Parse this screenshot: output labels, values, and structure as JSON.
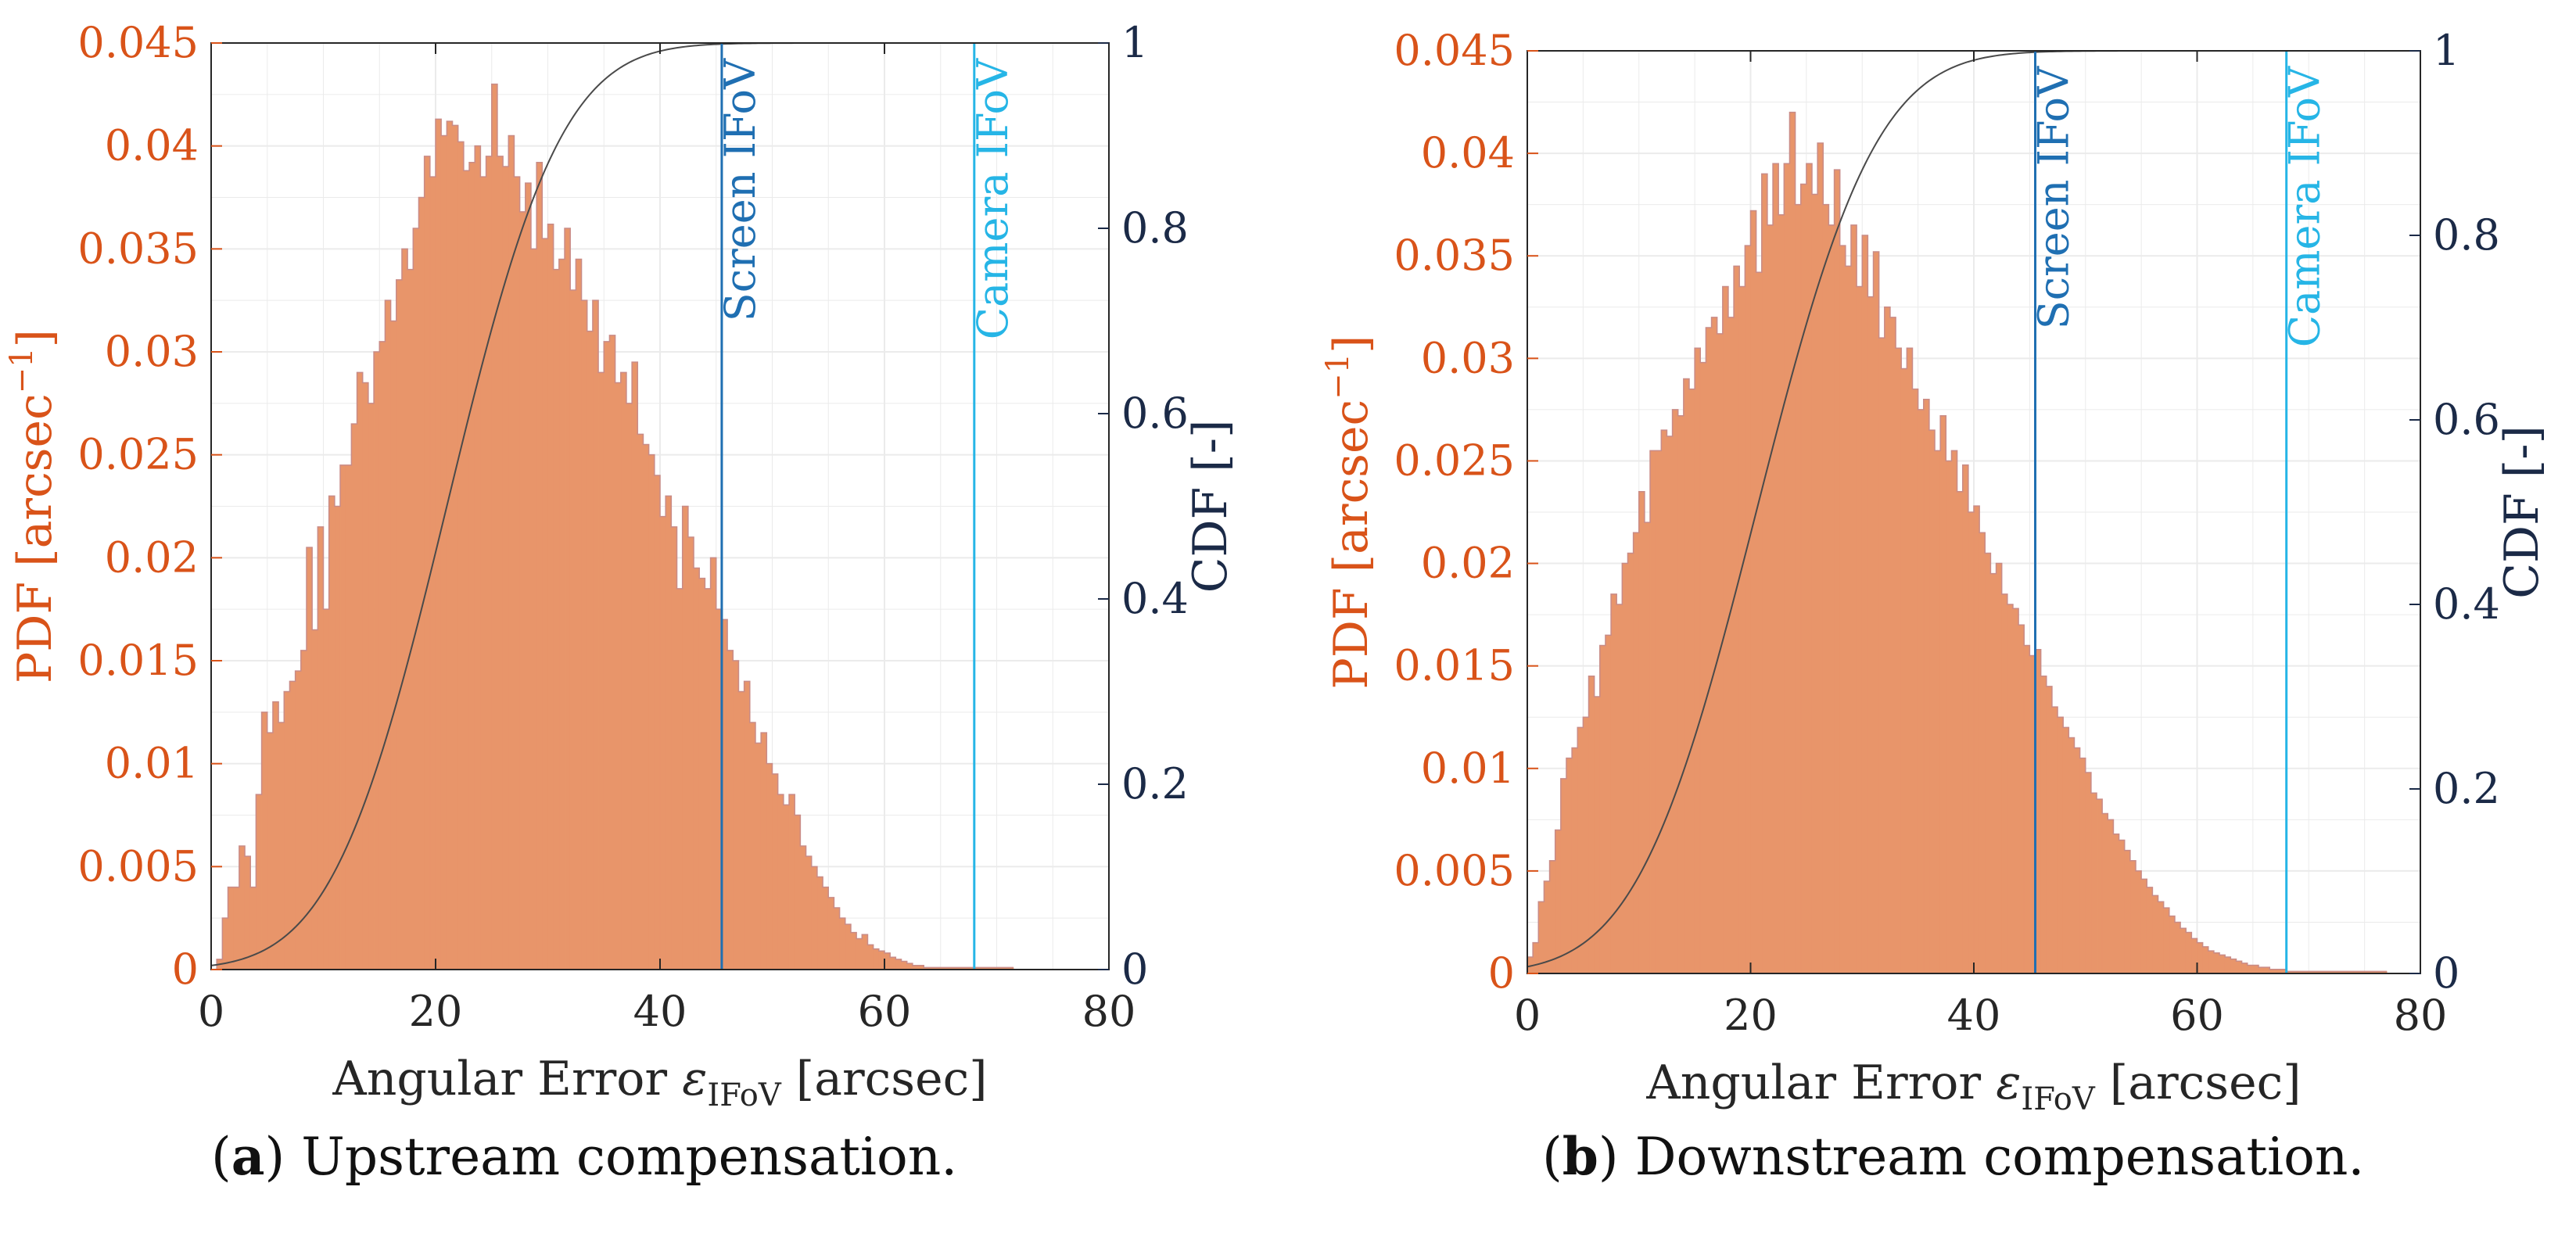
{
  "colors": {
    "histogram": "#e8956a",
    "histogram_edge": "#c98b86",
    "pdf_axis": "#d95319",
    "cdf_axis": "#1b2a47",
    "cdf_curve": "#4a4a4a",
    "screen_ifov": "#1f6fb2",
    "camera_ifov": "#26b5e6",
    "grid": "#ebebeb"
  },
  "chart_data": [
    {
      "type": "bar",
      "panel": "a",
      "caption_tag": "a",
      "caption_text": "Upstream compensation.",
      "xlabel_prefix": "Angular Error",
      "xlabel_symbol": "ε",
      "xlabel_subscript": "IFoV",
      "xlabel_suffix": "[arcsec]",
      "ylabel_left_main": "PDF [arcsec",
      "ylabel_left_sup": "−1",
      "ylabel_left_end": "]",
      "ylabel_right": "CDF [-]",
      "xlim": [
        0,
        80
      ],
      "ylim_left": [
        0,
        0.045
      ],
      "ylim_right": [
        0,
        1
      ],
      "xticks": [
        0,
        20,
        40,
        60,
        80
      ],
      "yticks_left": [
        "0",
        "0.005",
        "0.01",
        "0.015",
        "0.02",
        "0.025",
        "0.03",
        "0.035",
        "0.04",
        "0.045"
      ],
      "yticks_right": [
        "0",
        "0.2",
        "0.4",
        "0.6",
        "0.8",
        "1"
      ],
      "grid": "on",
      "bin_width": 0.5,
      "bin_start": 0.5,
      "pdf_values": [
        0.0005,
        0.0025,
        0.004,
        0.004,
        0.006,
        0.0055,
        0.004,
        0.0085,
        0.0125,
        0.0115,
        0.013,
        0.012,
        0.0135,
        0.014,
        0.0145,
        0.0155,
        0.0205,
        0.0165,
        0.0215,
        0.0175,
        0.023,
        0.0225,
        0.0245,
        0.0245,
        0.0265,
        0.029,
        0.0285,
        0.0275,
        0.03,
        0.0305,
        0.0325,
        0.0315,
        0.0335,
        0.035,
        0.034,
        0.036,
        0.0375,
        0.0395,
        0.0385,
        0.0413,
        0.0405,
        0.0412,
        0.041,
        0.0402,
        0.0388,
        0.0392,
        0.04,
        0.0385,
        0.0395,
        0.043,
        0.0395,
        0.039,
        0.0405,
        0.0385,
        0.0368,
        0.0382,
        0.035,
        0.0392,
        0.0355,
        0.0362,
        0.034,
        0.0345,
        0.036,
        0.033,
        0.0345,
        0.0325,
        0.031,
        0.0325,
        0.029,
        0.0305,
        0.0308,
        0.0285,
        0.029,
        0.0275,
        0.0295,
        0.026,
        0.0255,
        0.025,
        0.024,
        0.022,
        0.023,
        0.0215,
        0.0185,
        0.0225,
        0.021,
        0.0195,
        0.019,
        0.0185,
        0.02,
        0.0175,
        0.017,
        0.0155,
        0.015,
        0.0135,
        0.014,
        0.012,
        0.011,
        0.0115,
        0.01,
        0.0095,
        0.0085,
        0.008,
        0.0085,
        0.0075,
        0.006,
        0.0055,
        0.005,
        0.0045,
        0.004,
        0.0035,
        0.003,
        0.0025,
        0.0022,
        0.0018,
        0.0015,
        0.0017,
        0.0012,
        0.001,
        0.0009,
        0.0008,
        0.0006,
        0.0005,
        0.0004,
        0.0003,
        0.0002,
        0.0002,
        0.0001,
        0.0001,
        0.0001,
        0.0001,
        0.0001,
        0.0001,
        0.0001,
        0.0001,
        0.0001,
        0.0001,
        0.0001,
        0.0001,
        0.0001,
        0.0001,
        0.0001,
        0.0001
      ],
      "cdf_mean": 21.0,
      "cdf_sd": 8.0,
      "vlines": [
        {
          "label": "Screen IFoV",
          "x": 45.5,
          "color_key": "screen_ifov"
        },
        {
          "label": "Camera IFoV",
          "x": 68.0,
          "color_key": "camera_ifov"
        }
      ]
    },
    {
      "type": "bar",
      "panel": "b",
      "caption_tag": "b",
      "caption_text": "Downstream compensation.",
      "xlabel_prefix": "Angular Error",
      "xlabel_symbol": "ε",
      "xlabel_subscript": "IFoV",
      "xlabel_suffix": "[arcsec]",
      "ylabel_left_main": "PDF [arcsec",
      "ylabel_left_sup": "−1",
      "ylabel_left_end": "]",
      "ylabel_right": "CDF [-]",
      "xlim": [
        0,
        80
      ],
      "ylim_left": [
        0,
        0.045
      ],
      "ylim_right": [
        0,
        1
      ],
      "xticks": [
        0,
        20,
        40,
        60,
        80
      ],
      "yticks_left": [
        "0",
        "0.005",
        "0.01",
        "0.015",
        "0.02",
        "0.025",
        "0.03",
        "0.035",
        "0.04",
        "0.045"
      ],
      "yticks_right": [
        "0",
        "0.2",
        "0.4",
        "0.6",
        "0.8",
        "1"
      ],
      "grid": "on",
      "bin_width": 0.5,
      "bin_start": 0.0,
      "pdf_values": [
        0.0008,
        0.0015,
        0.0035,
        0.0045,
        0.0055,
        0.007,
        0.0095,
        0.0105,
        0.011,
        0.012,
        0.0125,
        0.0145,
        0.0135,
        0.016,
        0.0165,
        0.0185,
        0.018,
        0.02,
        0.0205,
        0.0215,
        0.0235,
        0.022,
        0.0255,
        0.0255,
        0.0265,
        0.0262,
        0.0275,
        0.0272,
        0.029,
        0.0285,
        0.0305,
        0.0298,
        0.0315,
        0.032,
        0.0312,
        0.0335,
        0.032,
        0.0345,
        0.0335,
        0.0355,
        0.0372,
        0.0342,
        0.039,
        0.0365,
        0.0395,
        0.037,
        0.0395,
        0.042,
        0.0375,
        0.0385,
        0.0395,
        0.038,
        0.0405,
        0.0375,
        0.0365,
        0.0392,
        0.0355,
        0.0345,
        0.0365,
        0.0335,
        0.036,
        0.033,
        0.0352,
        0.031,
        0.0325,
        0.032,
        0.0305,
        0.0295,
        0.0305,
        0.0285,
        0.0275,
        0.028,
        0.0265,
        0.0255,
        0.0272,
        0.025,
        0.0255,
        0.0235,
        0.0248,
        0.0225,
        0.0228,
        0.0215,
        0.0205,
        0.0195,
        0.02,
        0.0185,
        0.018,
        0.0178,
        0.017,
        0.016,
        0.0155,
        0.0158,
        0.0145,
        0.014,
        0.013,
        0.0125,
        0.012,
        0.0115,
        0.011,
        0.0105,
        0.0098,
        0.0088,
        0.0085,
        0.0078,
        0.0075,
        0.0068,
        0.0065,
        0.006,
        0.0055,
        0.005,
        0.0046,
        0.0042,
        0.0038,
        0.0035,
        0.0032,
        0.0028,
        0.0025,
        0.0022,
        0.002,
        0.0017,
        0.0015,
        0.0013,
        0.0011,
        0.001,
        0.0009,
        0.0008,
        0.0007,
        0.0006,
        0.0005,
        0.0004,
        0.0004,
        0.0003,
        0.0003,
        0.0002,
        0.0002,
        0.0002,
        0.0001,
        0.0001,
        0.0001,
        0.0001,
        0.0001,
        0.0001,
        0.0001,
        0.0001,
        0.0001,
        0.0001,
        0.0001,
        0.0001,
        0.0001,
        0.0001,
        0.0001,
        0.0001,
        0.0001,
        0.0001
      ],
      "cdf_mean": 20.5,
      "cdf_sd": 8.4,
      "vlines": [
        {
          "label": "Screen IFoV",
          "x": 45.5,
          "color_key": "screen_ifov"
        },
        {
          "label": "Camera IFoV",
          "x": 68.0,
          "color_key": "camera_ifov"
        }
      ]
    }
  ]
}
